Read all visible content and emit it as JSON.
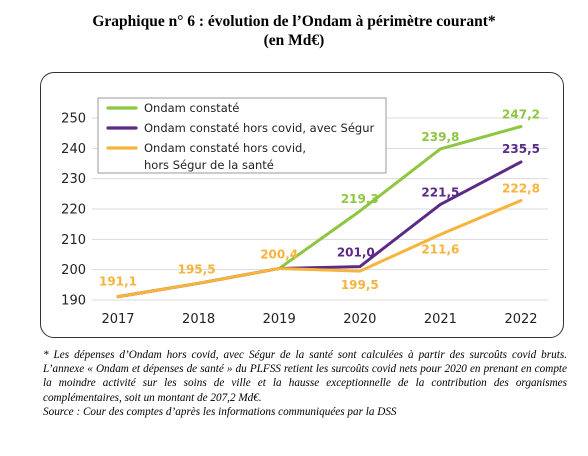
{
  "title_line1": "Graphique n° 6 : évolution de l’Ondam à périmètre courant*",
  "title_line2": "(en Md€)",
  "chart_data": {
    "type": "line",
    "categories": [
      "2017",
      "2018",
      "2019",
      "2020",
      "2021",
      "2022"
    ],
    "ylim": [
      190,
      250
    ],
    "yticks": [
      "190",
      "200",
      "210",
      "220",
      "230",
      "240",
      "250"
    ],
    "grid": true,
    "legend_position": "top-left",
    "series": [
      {
        "name": "Ondam constaté",
        "color": "#8dc63f",
        "values": [
          191.1,
          195.5,
          200.4,
          219.3,
          239.8,
          247.2
        ],
        "labels": [
          null,
          null,
          null,
          "219,3",
          "239,8",
          "247,2"
        ]
      },
      {
        "name": "Ondam constaté hors covid, avec Ségur",
        "color": "#5b2a86",
        "values": [
          191.1,
          195.5,
          200.4,
          201.0,
          221.5,
          235.5
        ],
        "labels": [
          null,
          null,
          null,
          "201,0",
          "221,5",
          "235,5"
        ]
      },
      {
        "name_lines": [
          "Ondam constaté hors covid,",
          "hors Ségur de la santé"
        ],
        "color": "#f7b33b",
        "values": [
          191.1,
          195.5,
          200.4,
          199.5,
          211.6,
          222.8
        ],
        "labels": [
          "191,1",
          "195,5",
          "200,4",
          "199,5",
          "211,6",
          "222,8"
        ]
      }
    ]
  },
  "notes": {
    "line1": "* Les dépenses d’Ondam hors covid, avec Ségur de la santé sont calculées à partir des surcoûts covid bruts. L’annexe « Ondam et dépenses de santé » du PLFSS retient les surcoûts covid nets pour 2020 en prenant en compte la moindre activité sur les soins de ville et la hausse exceptionnelle de la contribution des organismes complémentaires, soit un montant de 207,2 Md€.",
    "line2": "Source : Cour des comptes d’après les informations communiquées par la DSS"
  }
}
